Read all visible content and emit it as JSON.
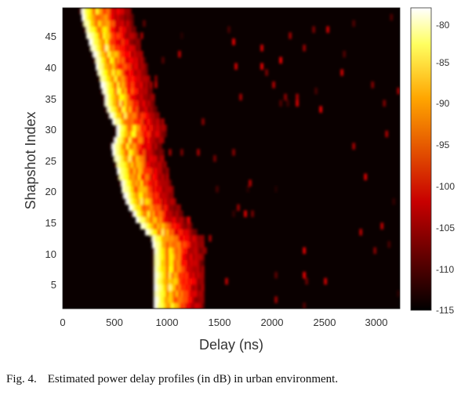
{
  "chart_data": {
    "type": "heatmap",
    "title": "",
    "xlabel": "Delay (ns)",
    "ylabel": "Shapshot Index",
    "xlim": [
      0,
      3150
    ],
    "ylim": [
      1,
      49
    ],
    "x_ticks": [
      "0",
      "500",
      "1000",
      "1500",
      "2000",
      "2500",
      "3000"
    ],
    "y_ticks": [
      "5",
      "10",
      "15",
      "20",
      "25",
      "30",
      "35",
      "40",
      "45"
    ],
    "colorbar_ticks": [
      "-80",
      "-85",
      "-90",
      "-95",
      "-100",
      "-105",
      "-110",
      "-115"
    ],
    "colorbar_range": [
      -115,
      -78
    ],
    "colormap": "hot",
    "units": "dB",
    "first_arrival_delay_ns": [
      [
        1,
        870
      ],
      [
        3,
        870
      ],
      [
        5,
        865
      ],
      [
        7,
        860
      ],
      [
        9,
        860
      ],
      [
        11,
        855
      ],
      [
        12,
        845
      ],
      [
        13,
        790
      ],
      [
        14,
        740
      ],
      [
        15,
        700
      ],
      [
        16,
        660
      ],
      [
        17,
        630
      ],
      [
        18,
        605
      ],
      [
        19,
        580
      ],
      [
        20,
        565
      ],
      [
        21,
        550
      ],
      [
        22,
        535
      ],
      [
        23,
        520
      ],
      [
        24,
        505
      ],
      [
        25,
        495
      ],
      [
        26,
        480
      ],
      [
        27,
        470
      ],
      [
        28,
        490
      ],
      [
        29,
        515
      ],
      [
        30,
        510
      ],
      [
        31,
        480
      ],
      [
        32,
        445
      ],
      [
        33,
        420
      ],
      [
        34,
        405
      ],
      [
        35,
        395
      ],
      [
        36,
        380
      ],
      [
        37,
        370
      ],
      [
        38,
        355
      ],
      [
        39,
        340
      ],
      [
        40,
        325
      ],
      [
        41,
        310
      ],
      [
        42,
        295
      ],
      [
        43,
        275
      ],
      [
        44,
        260
      ],
      [
        45,
        240
      ],
      [
        46,
        220
      ],
      [
        47,
        205
      ],
      [
        48,
        190
      ],
      [
        49,
        175
      ]
    ]
  },
  "caption": {
    "label": "Fig. 4.",
    "text": "Estimated power delay profiles (in dB) in urban environment."
  }
}
